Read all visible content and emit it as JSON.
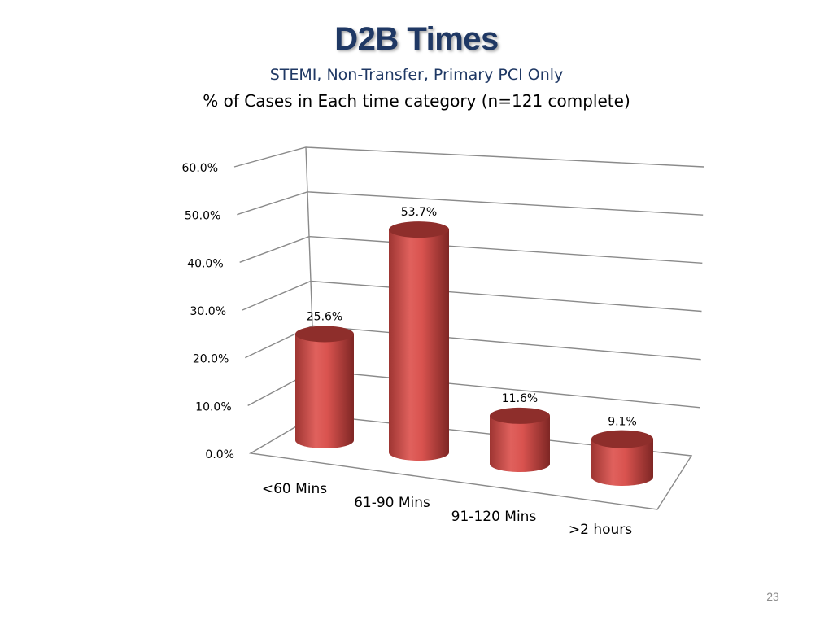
{
  "slide": {
    "title": "D2B Times",
    "subtitle": "STEMI, Non-Transfer, Primary PCI Only",
    "caption": "% of Cases in Each time category (n=121 complete)",
    "page_number": "23"
  },
  "chart_data": {
    "type": "bar",
    "style": "3d-cylinder",
    "categories": [
      "<60 Mins",
      "61-90 Mins",
      "91-120 Mins",
      ">2 hours"
    ],
    "values": [
      25.6,
      53.7,
      11.6,
      9.1
    ],
    "data_labels": [
      "25.6%",
      "53.7%",
      "11.6%",
      "9.1%"
    ],
    "ylim": [
      0,
      60
    ],
    "yticks": [
      "0.0%",
      "10.0%",
      "20.0%",
      "30.0%",
      "40.0%",
      "50.0%",
      "60.0%"
    ],
    "grid": true,
    "legend": "none",
    "bar_color": "#C0504D"
  }
}
